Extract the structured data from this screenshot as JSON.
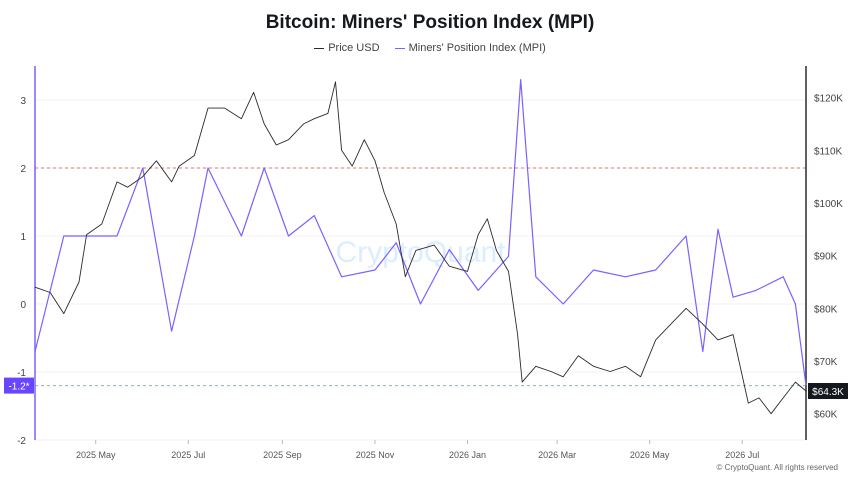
{
  "title": "Bitcoin: Miners' Position Index (MPI)",
  "footer": "© CryptoQuant. All rights reserved",
  "watermark": "CryptoQuant",
  "colors": {
    "price": "#2b2b2b",
    "mpi": "#7b61ff",
    "left_axis": "#7b61ff",
    "right_axis": "#2b2b2b",
    "threshold": "#e07070",
    "current_label_bg_left": "#6a45ff",
    "current_label_bg_right": "#15181d",
    "grid": "#eef3f7",
    "watermark": "#dbeeff"
  },
  "chart_data": {
    "type": "line",
    "title": "Bitcoin: Miners' Position Index (MPI)",
    "legend_position": "top-center",
    "grid": true,
    "x_ticks": [
      "2025 May",
      "2025 Jul",
      "2025 Sep",
      "2025 Nov",
      "2026 Jan",
      "2026 Mar",
      "2026 May",
      "2026 Jul"
    ],
    "x_range": [
      "2025-03-22",
      "2026-08-12"
    ],
    "left_axis": {
      "ylim": [
        -2,
        3.5
      ],
      "ticks": [
        "3",
        "2",
        "1",
        "0",
        "-1",
        "-2"
      ],
      "tick_values": [
        3,
        2,
        1,
        0,
        -1,
        -2
      ]
    },
    "right_axis": {
      "ylim": [
        55000,
        126000
      ],
      "ticks": [
        "$120K",
        "$110K",
        "$100K",
        "$90K",
        "$80K",
        "$70K",
        "$60K"
      ],
      "tick_values": [
        120000,
        110000,
        100000,
        90000,
        80000,
        70000,
        60000
      ]
    },
    "threshold": {
      "value": 2,
      "axis": "left"
    },
    "current_markers": {
      "left_label": "-1.2*",
      "left_value": -1.2,
      "right_label": "$64.3K",
      "right_value": 64300
    },
    "series": [
      {
        "name": "Price USD",
        "axis": "right",
        "x": [
          "2025-03-22",
          "2025-04-01",
          "2025-04-10",
          "2025-04-20",
          "2025-04-25",
          "2025-05-05",
          "2025-05-15",
          "2025-05-22",
          "2025-06-01",
          "2025-06-10",
          "2025-06-20",
          "2025-06-25",
          "2025-07-05",
          "2025-07-14",
          "2025-07-25",
          "2025-08-05",
          "2025-08-13",
          "2025-08-20",
          "2025-08-28",
          "2025-09-05",
          "2025-09-15",
          "2025-09-22",
          "2025-10-01",
          "2025-10-06",
          "2025-10-10",
          "2025-10-17",
          "2025-10-25",
          "2025-11-01",
          "2025-11-07",
          "2025-11-15",
          "2025-11-21",
          "2025-11-28",
          "2025-12-10",
          "2025-12-20",
          "2026-01-01",
          "2026-01-08",
          "2026-01-14",
          "2026-01-20",
          "2026-01-28",
          "2026-02-03",
          "2026-02-06",
          "2026-02-15",
          "2026-02-25",
          "2026-03-05",
          "2026-03-15",
          "2026-03-25",
          "2026-04-05",
          "2026-04-15",
          "2026-04-25",
          "2026-05-05",
          "2026-05-15",
          "2026-05-25",
          "2026-06-05",
          "2026-06-15",
          "2026-06-25",
          "2026-07-05",
          "2026-07-12",
          "2026-07-20",
          "2026-07-28",
          "2026-08-05",
          "2026-08-12"
        ],
        "values": [
          84000,
          83000,
          79000,
          85000,
          94000,
          96000,
          104000,
          103000,
          105000,
          108000,
          104000,
          107000,
          109000,
          118000,
          118000,
          116000,
          121000,
          115000,
          111000,
          112000,
          115000,
          116000,
          117000,
          123000,
          110000,
          107000,
          112000,
          108000,
          102000,
          96000,
          86000,
          91000,
          92000,
          88000,
          87000,
          94000,
          97000,
          91000,
          87000,
          75000,
          66000,
          69000,
          68000,
          67000,
          71000,
          69000,
          68000,
          69000,
          67000,
          74000,
          77000,
          80000,
          77000,
          74000,
          75000,
          62000,
          63000,
          60000,
          63000,
          66000,
          64300
        ]
      },
      {
        "name": "Miners' Position Index (MPI)",
        "axis": "left",
        "x": [
          "2025-03-22",
          "2025-04-10",
          "2025-05-15",
          "2025-06-01",
          "2025-06-20",
          "2025-07-05",
          "2025-07-14",
          "2025-08-05",
          "2025-08-20",
          "2025-09-05",
          "2025-09-22",
          "2025-10-10",
          "2025-11-01",
          "2025-11-15",
          "2025-12-01",
          "2025-12-20",
          "2026-01-08",
          "2026-01-28",
          "2026-02-05",
          "2026-02-15",
          "2026-03-05",
          "2026-03-25",
          "2026-04-15",
          "2026-05-05",
          "2026-05-25",
          "2026-06-05",
          "2026-06-15",
          "2026-06-25",
          "2026-07-10",
          "2026-07-28",
          "2026-08-05",
          "2026-08-12"
        ],
        "values": [
          -0.7,
          1.0,
          1.0,
          2.0,
          -0.4,
          1.0,
          2.0,
          1.0,
          2.0,
          1.0,
          1.3,
          0.4,
          0.5,
          0.9,
          0.0,
          0.8,
          0.2,
          0.7,
          3.3,
          0.4,
          0.0,
          0.5,
          0.4,
          0.5,
          1.0,
          -0.7,
          1.1,
          0.1,
          0.2,
          0.4,
          0.0,
          -1.2
        ]
      }
    ]
  }
}
